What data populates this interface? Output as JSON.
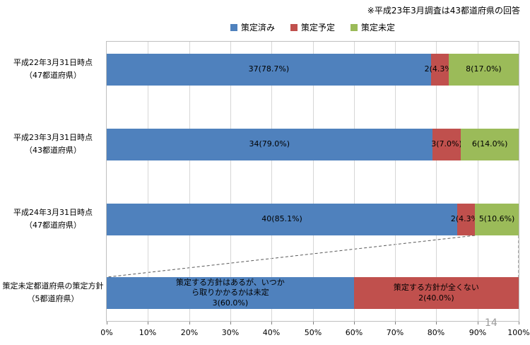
{
  "note": "※平成23年3月調査は43都道府県の回答",
  "page_number": "14",
  "legend": [
    {
      "label": "策定済み",
      "color": "#4f81bd"
    },
    {
      "label": "策定予定",
      "color": "#c0504d"
    },
    {
      "label": "策定未定",
      "color": "#9bbb59"
    }
  ],
  "chart_data": {
    "type": "bar",
    "orientation": "horizontal",
    "stacked": true,
    "unit": "percent",
    "xlim": [
      0,
      100
    ],
    "grid": "vertical",
    "legend_position": "top-center",
    "x_ticks": [
      "0%",
      "10%",
      "20%",
      "30%",
      "40%",
      "50%",
      "60%",
      "70%",
      "80%",
      "90%",
      "100%"
    ],
    "series_names": [
      "策定済み",
      "策定予定",
      "策定未定"
    ],
    "rows": [
      {
        "category_lines": [
          "平成22年3月31日時点",
          "（47都道府県）"
        ],
        "segments": [
          {
            "series": "策定済み",
            "count": 37,
            "pct": 78.7,
            "color": "#4f81bd",
            "label_lines": [
              "37(78.7%)"
            ]
          },
          {
            "series": "策定予定",
            "count": 2,
            "pct": 4.3,
            "color": "#c0504d",
            "label_lines": [
              "2(4.3%)"
            ]
          },
          {
            "series": "策定未定",
            "count": 8,
            "pct": 17.0,
            "color": "#9bbb59",
            "label_lines": [
              "8(17.0%)"
            ]
          }
        ]
      },
      {
        "category_lines": [
          "平成23年3月31日時点",
          "（43都道府県）"
        ],
        "segments": [
          {
            "series": "策定済み",
            "count": 34,
            "pct": 79.0,
            "color": "#4f81bd",
            "label_lines": [
              "34(79.0%)"
            ]
          },
          {
            "series": "策定予定",
            "count": 3,
            "pct": 7.0,
            "color": "#c0504d",
            "label_lines": [
              "3(7.0%)"
            ]
          },
          {
            "series": "策定未定",
            "count": 6,
            "pct": 14.0,
            "color": "#9bbb59",
            "label_lines": [
              "6(14.0%)"
            ]
          }
        ]
      },
      {
        "category_lines": [
          "平成24年3月31日時点",
          "（47都道府県）"
        ],
        "segments": [
          {
            "series": "策定済み",
            "count": 40,
            "pct": 85.1,
            "color": "#4f81bd",
            "label_lines": [
              "40(85.1%)"
            ]
          },
          {
            "series": "策定予定",
            "count": 2,
            "pct": 4.3,
            "color": "#c0504d",
            "label_lines": [
              "2(4.3%)"
            ]
          },
          {
            "series": "策定未定",
            "count": 5,
            "pct": 10.6,
            "color": "#9bbb59",
            "label_lines": [
              "5(10.6%)"
            ]
          }
        ]
      },
      {
        "category_lines": [
          "策定未定都道府県の策定方針",
          "（5都道府県）"
        ],
        "segments": [
          {
            "series": "策定済み",
            "count": 3,
            "pct": 60.0,
            "color": "#4f81bd",
            "label_lines": [
              "策定する方針はあるが、いつか",
              "ら取りかかるかは未定",
              "3(60.0%)"
            ]
          },
          {
            "series": "策定予定",
            "count": 2,
            "pct": 40.0,
            "color": "#c0504d",
            "label_lines": [
              "策定する方針が全くない",
              "2(40.0%)"
            ]
          }
        ]
      }
    ],
    "annotation": {
      "type": "expand-dashed-lines",
      "source_row": 2,
      "source_series": "策定未定",
      "target_row": 3,
      "line_color": "#595959"
    }
  }
}
